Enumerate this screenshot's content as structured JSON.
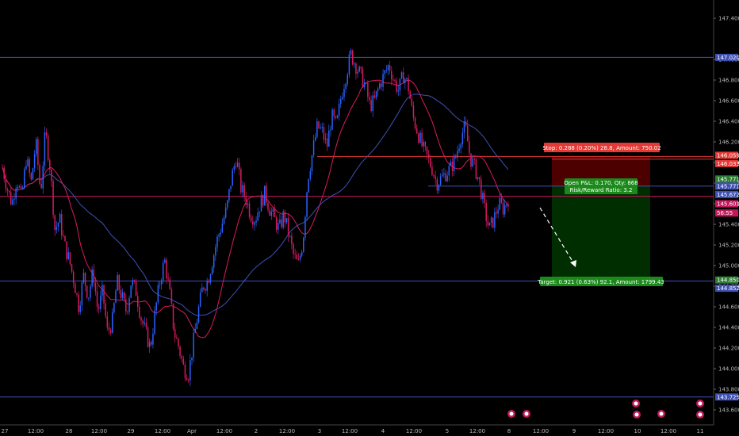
{
  "chart_data": {
    "type": "candlestick",
    "title": "",
    "xlabel": "",
    "ylabel": "",
    "ylim": [
      143.5,
      147.5
    ],
    "grid": false,
    "y_ticks": [
      "147.400",
      "147.000",
      "146.800",
      "146.600",
      "146.400",
      "146.200",
      "146.000",
      "145.800",
      "145.600",
      "145.400",
      "145.200",
      "145.000",
      "144.800",
      "144.600",
      "144.400",
      "144.200",
      "144.000",
      "143.800",
      "143.600"
    ],
    "x_ticks": [
      "27",
      "12:00",
      "28",
      "12:00",
      "29",
      "12:00",
      "Apr",
      "12:00",
      "2",
      "12:00",
      "3",
      "12:00",
      "4",
      "12:00",
      "5",
      "12:00",
      "8",
      "12:00",
      "9",
      "12:00",
      "10",
      "12:00",
      "11"
    ],
    "candle_path": [
      145.95,
      145.75,
      145.6,
      145.85,
      145.65,
      146.05,
      145.8,
      146.2,
      145.7,
      146.3,
      145.95,
      145.35,
      145.45,
      145.2,
      145.05,
      144.85,
      144.6,
      144.9,
      144.7,
      144.95,
      144.55,
      144.75,
      144.35,
      144.45,
      144.85,
      144.7,
      144.55,
      144.85,
      144.75,
      144.5,
      144.35,
      144.2,
      144.55,
      144.85,
      145.05,
      144.75,
      144.35,
      144.2,
      144.0,
      143.95,
      144.25,
      144.55,
      144.8,
      144.85,
      145.05,
      145.25,
      145.4,
      145.55,
      145.85,
      146.05,
      145.75,
      145.65,
      145.5,
      145.45,
      145.6,
      145.7,
      145.55,
      145.45,
      145.35,
      145.5,
      145.3,
      145.1,
      145.0,
      145.25,
      145.85,
      146.1,
      146.35,
      146.3,
      146.15,
      146.45,
      146.35,
      146.65,
      146.85,
      147.05,
      146.95,
      146.85,
      146.75,
      146.55,
      146.6,
      146.75,
      146.85,
      146.95,
      146.8,
      146.7,
      146.85,
      146.75,
      146.45,
      146.3,
      146.15,
      146.05,
      145.95,
      145.8,
      145.85,
      145.9,
      145.95,
      146.05,
      146.25,
      146.35,
      146.05,
      145.95,
      145.8,
      145.55,
      145.35,
      145.45,
      145.6,
      145.55,
      145.65
    ],
    "horizontal_lines": [
      {
        "name": "resistance-line",
        "price": 147.02,
        "color": "#3f51b5"
      },
      {
        "name": "stop-line",
        "price": 146.059,
        "color": "#e53935"
      },
      {
        "name": "stop-secondary-line",
        "price": 146.033,
        "color": "#e53935"
      },
      {
        "name": "entry-line",
        "price": 145.771,
        "color": "#3f51b5"
      },
      {
        "name": "current-price-line",
        "price": 145.672,
        "color": "#c2185b"
      },
      {
        "name": "target-line",
        "price": 144.85,
        "color": "#3f51b5"
      },
      {
        "name": "support-line",
        "price": 143.725,
        "color": "#3f51b5"
      }
    ],
    "position": {
      "entry": 145.771,
      "stop": 146.059,
      "target": 144.85,
      "stop_label": "Stop: 0.288 (0.20%) 28.8, Amount: 750.02",
      "open_pnl_label": "Open P&L: 0.170, Qty: 868",
      "risk_reward_label": "Risk/Reward Ratio: 3.2",
      "target_label": "Target: 0.921 (0.63%) 92.1, Amount: 1799.43"
    },
    "price_labels": [
      {
        "value": "147.020",
        "price": 147.02,
        "color": "#3f51b5"
      },
      {
        "value": "146.059",
        "price": 146.07,
        "color": "#e53935"
      },
      {
        "value": "146.033",
        "price": 145.99,
        "color": "#e53935"
      },
      {
        "value": "145.771",
        "price": 145.84,
        "color": "#2e7d32"
      },
      {
        "value": "145.771",
        "price": 145.771,
        "color": "#3f51b5"
      },
      {
        "value": "145.672",
        "price": 145.69,
        "color": "#3f51b5"
      },
      {
        "value": "145.601",
        "price": 145.6,
        "color": "#c2185b"
      },
      {
        "value": "56:55",
        "price": 145.51,
        "color": "#c2185b"
      },
      {
        "value": "144.850",
        "price": 144.86,
        "color": "#2e7d32"
      },
      {
        "value": "144.852",
        "price": 144.78,
        "color": "#3f51b5"
      },
      {
        "value": "143.725",
        "price": 143.725,
        "color": "#3f51b5"
      }
    ],
    "colors": {
      "bull": "#2962ff",
      "bear": "#d81b60",
      "ma_fast": "#d81b60",
      "ma_slow": "#3f51b5",
      "stop_zone": "#5a0000",
      "target_zone": "#003300"
    }
  }
}
